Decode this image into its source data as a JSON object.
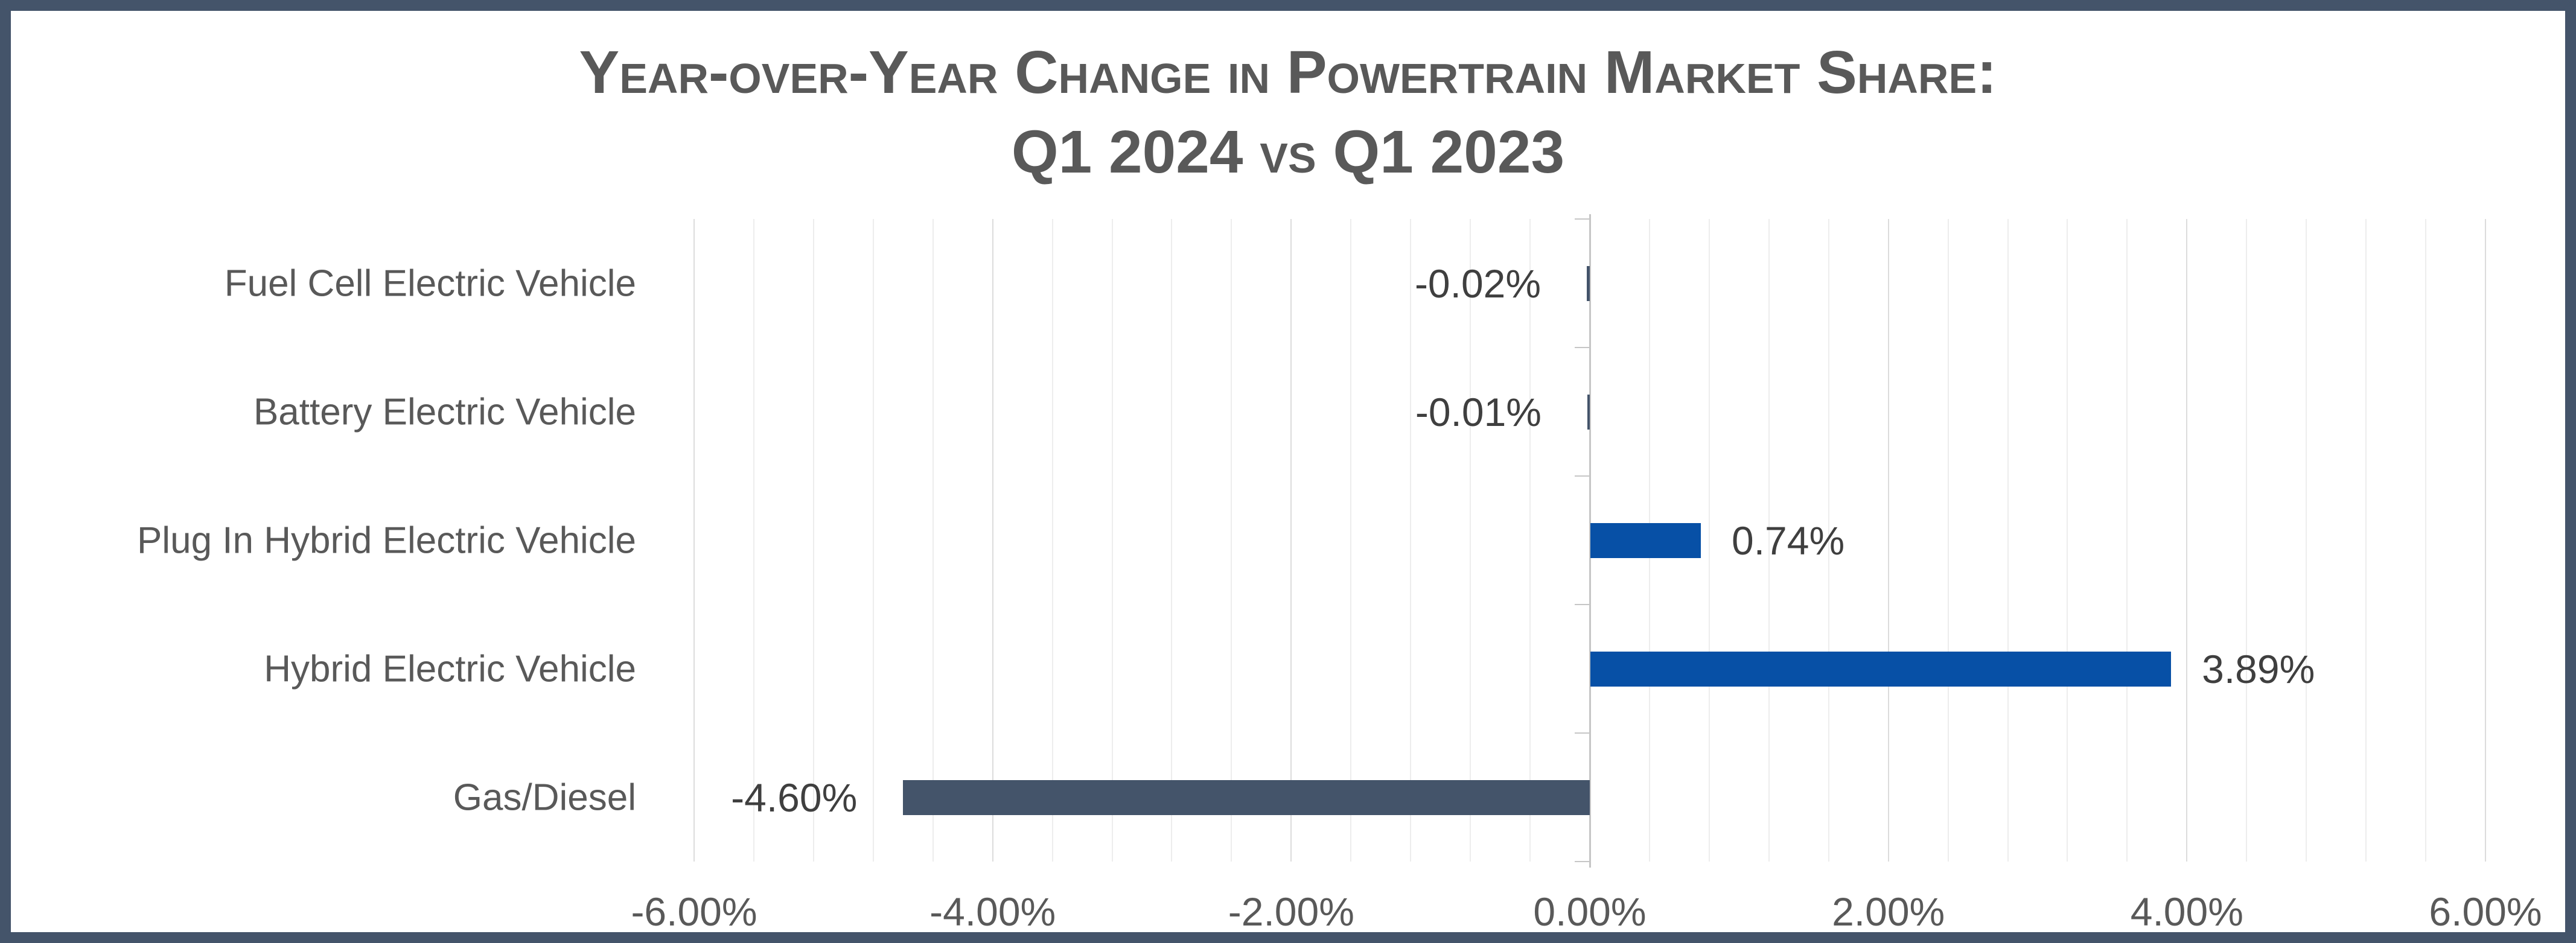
{
  "title": {
    "line1": "Year-over-Year Change in Powertrain Market Share:",
    "line2": "Q1 2024 vs Q1 2023"
  },
  "chart_data": {
    "type": "bar",
    "orientation": "horizontal",
    "title": "Year-over-Year Change in Powertrain Market Share: Q1 2024 vs Q1 2023",
    "categories": [
      "Fuel Cell Electric Vehicle",
      "Battery Electric Vehicle",
      "Plug In Hybrid Electric Vehicle",
      "Hybrid Electric Vehicle",
      "Gas/Diesel"
    ],
    "values": [
      -0.02,
      -0.01,
      0.74,
      3.89,
      -4.6
    ],
    "data_labels": [
      "-0.02%",
      "-0.01%",
      "0.74%",
      "3.89%",
      "-4.60%"
    ],
    "xlabel": "",
    "ylabel": "",
    "xlim": [
      -6,
      6
    ],
    "x_major_unit": 2,
    "x_minor_unit": 0.4,
    "x_tick_values": [
      -6,
      -4,
      -2,
      0,
      2,
      4,
      6
    ],
    "x_tick_labels": [
      "-6.00%",
      "-4.00%",
      "-2.00%",
      "0.00%",
      "2.00%",
      "4.00%",
      "6.00%"
    ],
    "grid": "vertical, minor and major gridlines on",
    "legend": "none",
    "colors": {
      "positive_bar": "#0750A6",
      "negative_bar": "#44546A",
      "frame_border": "#44546A",
      "title_text": "#595959",
      "axis_text": "#595959",
      "data_label_text": "#3f3f3f",
      "minor_gridline": "#ededed",
      "major_gridline": "#dcdcdc",
      "axis_line": "#c6c6c6"
    }
  }
}
